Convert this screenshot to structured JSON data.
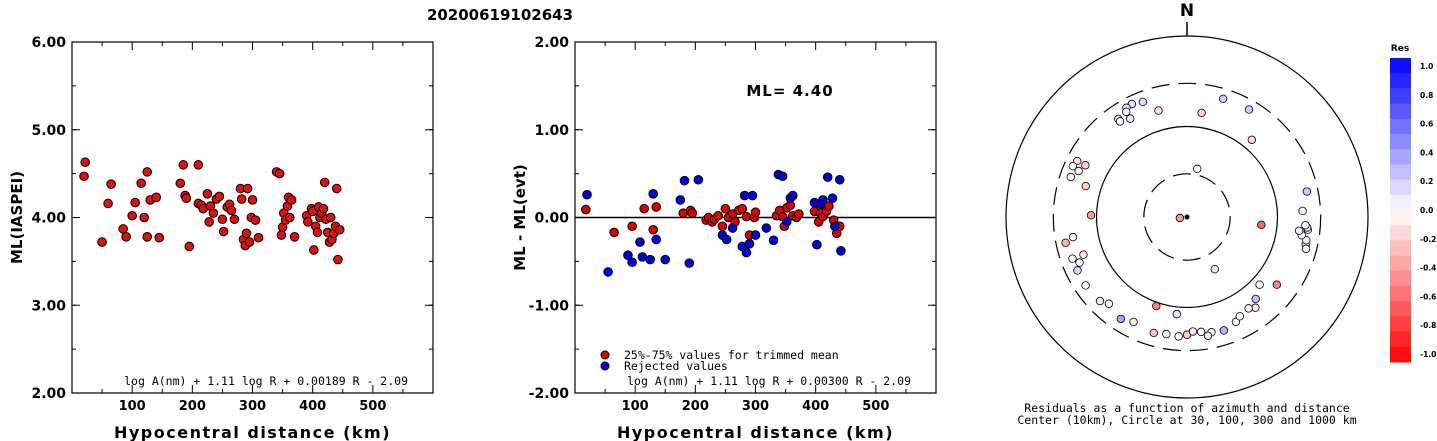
{
  "title": "20200619102643",
  "chart_data": [
    {
      "type": "scatter",
      "xlabel": "Hypocentral distance (km)",
      "ylabel": "ML(IASPEI)",
      "xlim": [
        0,
        600
      ],
      "ylim": [
        2.0,
        6.0
      ],
      "xticks": [
        "100",
        "200",
        "300",
        "400",
        "500"
      ],
      "yticks": [
        "2.00",
        "3.00",
        "4.00",
        "5.00",
        "6.00"
      ],
      "formula": "log A(nm) + 1.11 log R + 0.00189 R - 2.09",
      "points": [
        [
          20,
          4.47
        ],
        [
          22,
          4.63
        ],
        [
          50,
          3.72
        ],
        [
          60,
          4.16
        ],
        [
          65,
          4.38
        ],
        [
          85,
          3.87
        ],
        [
          90,
          3.78
        ],
        [
          100,
          4.02
        ],
        [
          105,
          4.17
        ],
        [
          115,
          4.39
        ],
        [
          120,
          4.0
        ],
        [
          125,
          3.78
        ],
        [
          125,
          4.52
        ],
        [
          130,
          4.2
        ],
        [
          140,
          4.23
        ],
        [
          145,
          3.77
        ],
        [
          180,
          4.39
        ],
        [
          185,
          4.6
        ],
        [
          188,
          4.25
        ],
        [
          190,
          4.22
        ],
        [
          195,
          3.67
        ],
        [
          210,
          4.6
        ],
        [
          210,
          4.16
        ],
        [
          215,
          4.14
        ],
        [
          218,
          4.1
        ],
        [
          225,
          4.27
        ],
        [
          228,
          3.95
        ],
        [
          230,
          4.13
        ],
        [
          235,
          4.05
        ],
        [
          240,
          4.21
        ],
        [
          245,
          4.24
        ],
        [
          250,
          3.98
        ],
        [
          252,
          3.84
        ],
        [
          258,
          4.12
        ],
        [
          262,
          4.15
        ],
        [
          265,
          4.08
        ],
        [
          270,
          3.98
        ],
        [
          280,
          4.33
        ],
        [
          282,
          4.21
        ],
        [
          285,
          3.75
        ],
        [
          288,
          3.68
        ],
        [
          290,
          3.82
        ],
        [
          292,
          4.33
        ],
        [
          295,
          3.72
        ],
        [
          298,
          4.0
        ],
        [
          300,
          4.2
        ],
        [
          305,
          3.97
        ],
        [
          310,
          3.77
        ],
        [
          340,
          4.52
        ],
        [
          345,
          4.5
        ],
        [
          348,
          3.8
        ],
        [
          350,
          3.89
        ],
        [
          352,
          4.05
        ],
        [
          355,
          3.97
        ],
        [
          358,
          4.13
        ],
        [
          360,
          4.23
        ],
        [
          362,
          4.0
        ],
        [
          365,
          4.2
        ],
        [
          370,
          3.78
        ],
        [
          390,
          4.02
        ],
        [
          392,
          3.95
        ],
        [
          398,
          4.1
        ],
        [
          400,
          4.07
        ],
        [
          402,
          3.63
        ],
        [
          405,
          3.9
        ],
        [
          408,
          3.83
        ],
        [
          410,
          4.12
        ],
        [
          412,
          4.0
        ],
        [
          415,
          4.05
        ],
        [
          418,
          4.1
        ],
        [
          420,
          4.4
        ],
        [
          422,
          3.98
        ],
        [
          425,
          3.83
        ],
        [
          428,
          3.72
        ],
        [
          430,
          4.0
        ],
        [
          432,
          3.75
        ],
        [
          435,
          3.82
        ],
        [
          438,
          3.9
        ],
        [
          440,
          4.33
        ],
        [
          442,
          3.52
        ],
        [
          445,
          3.86
        ]
      ]
    },
    {
      "type": "scatter",
      "xlabel": "Hypocentral distance (km)",
      "ylabel": "ML - ML(evt)",
      "xlim": [
        0,
        600
      ],
      "ylim": [
        -2.0,
        2.0
      ],
      "xticks": [
        "100",
        "200",
        "300",
        "400",
        "500"
      ],
      "yticks": [
        "-2.00",
        "-1.00",
        "0.00",
        "1.00",
        "2.00"
      ],
      "annotation": "ML= 4.40",
      "legend": [
        "25%-75% values for trimmed mean",
        "Rejected values"
      ],
      "formula": "log A(nm) + 1.11 log R + 0.00300 R - 2.09",
      "series": [
        {
          "name": "25%-75% values for trimmed mean",
          "color": "#e00000",
          "points": [
            [
              18,
              0.09
            ],
            [
              65,
              -0.17
            ],
            [
              95,
              -0.1
            ],
            [
              115,
              0.1
            ],
            [
              130,
              -0.14
            ],
            [
              135,
              0.12
            ],
            [
              180,
              0.05
            ],
            [
              192,
              0.08
            ],
            [
              195,
              0.05
            ],
            [
              218,
              -0.03
            ],
            [
              222,
              0.0
            ],
            [
              228,
              -0.05
            ],
            [
              232,
              -0.02
            ],
            [
              238,
              0.02
            ],
            [
              245,
              -0.1
            ],
            [
              250,
              0.1
            ],
            [
              255,
              0.0
            ],
            [
              262,
              0.04
            ],
            [
              266,
              -0.05
            ],
            [
              272,
              0.08
            ],
            [
              278,
              0.1
            ],
            [
              285,
              0.01
            ],
            [
              290,
              -0.2
            ],
            [
              298,
              0.0
            ],
            [
              300,
              0.06
            ],
            [
              335,
              0.02
            ],
            [
              340,
              0.08
            ],
            [
              345,
              0.01
            ],
            [
              348,
              -0.1
            ],
            [
              352,
              0.11
            ],
            [
              358,
              0.14
            ],
            [
              362,
              0.02
            ],
            [
              368,
              0.0
            ],
            [
              372,
              0.04
            ],
            [
              398,
              0.07
            ],
            [
              405,
              -0.05
            ],
            [
              408,
              0.05
            ],
            [
              412,
              0.01
            ],
            [
              418,
              0.07
            ],
            [
              422,
              0.13
            ],
            [
              430,
              -0.03
            ],
            [
              435,
              -0.18
            ],
            [
              440,
              -0.1
            ]
          ]
        },
        {
          "name": "Rejected values",
          "color": "#0000e0",
          "points": [
            [
              20,
              0.26
            ],
            [
              55,
              -0.62
            ],
            [
              88,
              -0.43
            ],
            [
              95,
              -0.51
            ],
            [
              108,
              -0.28
            ],
            [
              112,
              -0.45
            ],
            [
              125,
              -0.48
            ],
            [
              130,
              0.27
            ],
            [
              135,
              -0.25
            ],
            [
              150,
              -0.48
            ],
            [
              175,
              0.2
            ],
            [
              182,
              0.42
            ],
            [
              190,
              -0.52
            ],
            [
              205,
              0.43
            ],
            [
              245,
              -0.2
            ],
            [
              252,
              -0.25
            ],
            [
              262,
              -0.12
            ],
            [
              278,
              -0.33
            ],
            [
              282,
              0.25
            ],
            [
              285,
              -0.4
            ],
            [
              290,
              -0.3
            ],
            [
              295,
              0.25
            ],
            [
              300,
              -0.2
            ],
            [
              318,
              -0.12
            ],
            [
              330,
              -0.26
            ],
            [
              338,
              0.49
            ],
            [
              345,
              0.47
            ],
            [
              352,
              -0.05
            ],
            [
              358,
              0.22
            ],
            [
              362,
              0.25
            ],
            [
              398,
              0.17
            ],
            [
              402,
              -0.31
            ],
            [
              408,
              0.15
            ],
            [
              412,
              0.2
            ],
            [
              420,
              0.46
            ],
            [
              428,
              0.22
            ],
            [
              432,
              -0.1
            ],
            [
              440,
              0.43
            ],
            [
              442,
              -0.38
            ]
          ]
        }
      ]
    },
    {
      "type": "scatter",
      "subtype": "polar",
      "north_label": "N",
      "caption": [
        "Residuals as a function of azimuth and distance",
        "Center (10km), Circle at 30, 100, 300 and 1000 km"
      ],
      "rings_km": [
        30,
        100,
        300,
        1000
      ],
      "ring_dashed": [
        true,
        false,
        true,
        false
      ],
      "colorbar": {
        "title": "Res",
        "labels": [
          "1.0",
          "0.8",
          "0.6",
          "0.4",
          "0.2",
          "0.0",
          "-0.2",
          "-0.4",
          "-0.6",
          "-0.8",
          "-1.0"
        ]
      },
      "points": [
        {
          "az": 339,
          "dist": 230,
          "res": 0.15
        },
        {
          "az": 334,
          "dist": 245,
          "res": 0.12
        },
        {
          "az": 331,
          "dist": 240,
          "res": 0.1
        },
        {
          "az": 330,
          "dist": 220,
          "res": 0.05
        },
        {
          "az": 325,
          "dist": 210,
          "res": 0.02
        },
        {
          "az": 325,
          "dist": 195,
          "res": 0.0
        },
        {
          "az": 330,
          "dist": 180,
          "res": 0.08
        },
        {
          "az": 345,
          "dist": 165,
          "res": -0.1
        },
        {
          "az": 8,
          "dist": 145,
          "res": -0.2
        },
        {
          "az": 30,
          "dist": 235,
          "res": 0.2
        },
        {
          "az": 40,
          "dist": 130,
          "res": -0.15
        },
        {
          "az": 297,
          "dist": 230,
          "res": -0.12
        },
        {
          "az": 294,
          "dist": 240,
          "res": 0.0
        },
        {
          "az": 289,
          "dist": 228,
          "res": 0.0
        },
        {
          "az": 293,
          "dist": 200,
          "res": -0.05
        },
        {
          "az": 297,
          "dist": 182,
          "res": -0.18
        },
        {
          "az": 287,
          "dist": 148,
          "res": -0.2
        },
        {
          "az": 271,
          "dist": 115,
          "res": -0.4
        },
        {
          "az": 258,
          "dist": 235,
          "res": -0.3
        },
        {
          "az": 250,
          "dist": 222,
          "res": 0.0
        },
        {
          "az": 244,
          "dist": 222,
          "res": 0.15
        },
        {
          "az": 247,
          "dist": 195,
          "res": 0.0
        },
        {
          "az": 260,
          "dist": 190,
          "res": -0.05
        },
        {
          "az": 250,
          "dist": 165,
          "res": -0.1
        },
        {
          "az": 236,
          "dist": 225,
          "res": 0.0
        },
        {
          "az": 226,
          "dist": 217,
          "res": -0.1
        },
        {
          "az": 222,
          "dist": 195,
          "res": 0.0
        },
        {
          "az": 213,
          "dist": 220,
          "res": 0.35
        },
        {
          "az": 207,
          "dist": 200,
          "res": -0.1
        },
        {
          "az": 196,
          "dist": 215,
          "res": -0.25
        },
        {
          "az": 190,
          "dist": 206,
          "res": 0.0
        },
        {
          "az": 184,
          "dist": 210,
          "res": 0.0
        },
        {
          "az": 180,
          "dist": 200,
          "res": -0.2
        },
        {
          "az": 177,
          "dist": 185,
          "res": 0.05
        },
        {
          "az": 173,
          "dist": 190,
          "res": 0.0
        },
        {
          "az": 168,
          "dist": 200,
          "res": 0.0
        },
        {
          "az": 170,
          "dist": 215,
          "res": -0.1
        },
        {
          "az": 162,
          "dist": 208,
          "res": 0.3
        },
        {
          "az": 155,
          "dist": 190,
          "res": -0.05
        },
        {
          "az": 152,
          "dist": 175,
          "res": -0.05
        },
        {
          "az": 143,
          "dist": 180,
          "res": -0.1
        },
        {
          "az": 146,
          "dist": 165,
          "res": 0.0
        },
        {
          "az": 140,
          "dist": 152,
          "res": 0.25
        },
        {
          "az": 127,
          "dist": 175,
          "res": -0.5
        },
        {
          "az": 133,
          "dist": 125,
          "res": 0.0
        },
        {
          "az": 199,
          "dist": 110,
          "res": -0.5
        },
        {
          "az": 186,
          "dist": 120,
          "res": 0.1
        },
        {
          "az": 103,
          "dist": 222,
          "res": 0.15
        },
        {
          "az": 105,
          "dist": 230,
          "res": 0.0
        },
        {
          "az": 101,
          "dist": 220,
          "res": 0.05
        },
        {
          "az": 96,
          "dist": 220,
          "res": -0.05
        },
        {
          "az": 95,
          "dist": 215,
          "res": 0.0
        },
        {
          "az": 78,
          "dist": 226,
          "res": 0.2
        },
        {
          "az": 94,
          "dist": 205,
          "res": 0.0
        },
        {
          "az": 99,
          "dist": 192,
          "res": 0.0
        },
        {
          "az": 97,
          "dist": 177,
          "res": 0.05
        },
        {
          "az": 87,
          "dist": 190,
          "res": 0.0
        },
        {
          "az": 17,
          "dist": 232,
          "res": 0.2
        },
        {
          "az": 12,
          "dist": 35,
          "res": 0.0
        },
        {
          "az": 152,
          "dist": 45,
          "res": 0.1
        },
        {
          "az": 262,
          "dist": 12,
          "res": -0.4
        },
        {
          "az": 96,
          "dist": 67,
          "res": -0.6
        }
      ]
    }
  ]
}
